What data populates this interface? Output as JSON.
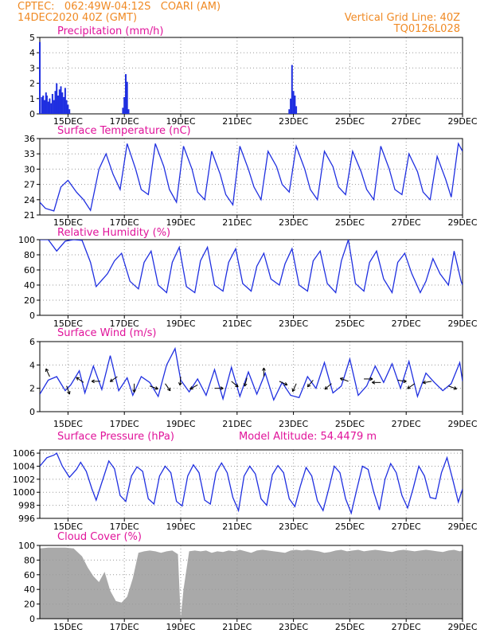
{
  "header": {
    "line1": "CPTEC:   062:49W-04:12S   COARI (AM)",
    "line2": "14DEC2020 40Z (GMT)",
    "right1": "Vertical Grid Line: 40Z",
    "right2": "TQ0126L028"
  },
  "colors": {
    "header": "#f08a24",
    "title": "#e0139a",
    "series": "#1f2fe0",
    "cloud": "#a9a9a9",
    "wind_arrow": "#000000",
    "grid": "#9a9a9a"
  },
  "x_axis": {
    "start_day": 14.0,
    "end_day": 29.0,
    "tick_days": [
      15,
      17,
      19,
      21,
      23,
      25,
      27,
      29
    ],
    "tick_labels": [
      "15DEC",
      "17DEC",
      "19DEC",
      "21DEC",
      "23DEC",
      "25DEC",
      "27DEC",
      "29DEC"
    ]
  },
  "chart_data": [
    {
      "type": "bar",
      "title": "Precipitation (mm/h)",
      "ylim": [
        0,
        5
      ],
      "yticks": [
        0,
        1,
        2,
        3,
        4,
        5
      ],
      "grid": true,
      "series": [
        {
          "x": [
            14.0,
            14.07,
            14.12,
            14.17,
            14.22,
            14.25,
            14.3,
            14.35,
            14.4,
            14.45,
            14.5,
            14.55,
            14.6,
            14.65,
            14.7,
            14.75,
            14.8,
            14.85,
            14.9,
            14.95,
            15.0,
            15.05,
            16.95,
            17.0,
            17.05,
            17.1,
            17.15,
            22.85,
            22.9,
            22.95,
            23.0,
            23.05,
            23.1
          ],
          "values": [
            4.7,
            1.1,
            1.2,
            0.9,
            1.4,
            1.2,
            0.8,
            1.0,
            0.7,
            1.3,
            0.9,
            1.5,
            2.0,
            1.2,
            1.6,
            1.8,
            1.4,
            1.1,
            1.7,
            0.9,
            0.6,
            0.3,
            0.4,
            1.1,
            2.6,
            2.1,
            0.3,
            0.3,
            1.0,
            3.2,
            1.5,
            1.2,
            0.5
          ]
        }
      ]
    },
    {
      "type": "line",
      "title": "Surface Temperature (nC)",
      "ylim": [
        21,
        36
      ],
      "yticks": [
        21,
        24,
        27,
        30,
        33,
        36
      ],
      "grid": true,
      "series": [
        {
          "x": [
            14.0,
            14.2,
            14.5,
            14.75,
            15.0,
            15.3,
            15.55,
            15.8,
            16.1,
            16.35,
            16.6,
            16.85,
            17.1,
            17.4,
            17.6,
            17.85,
            18.1,
            18.4,
            18.6,
            18.85,
            19.1,
            19.4,
            19.6,
            19.85,
            20.1,
            20.4,
            20.6,
            20.85,
            21.1,
            21.4,
            21.6,
            21.85,
            22.1,
            22.4,
            22.6,
            22.85,
            23.1,
            23.4,
            23.6,
            23.85,
            24.1,
            24.4,
            24.6,
            24.85,
            25.1,
            25.4,
            25.6,
            25.85,
            26.1,
            26.4,
            26.6,
            26.85,
            27.1,
            27.4,
            27.6,
            27.85,
            28.1,
            28.4,
            28.6,
            28.85,
            29.0
          ],
          "values": [
            23.5,
            22.3,
            21.8,
            26.5,
            27.8,
            25.5,
            24.0,
            21.9,
            30.0,
            33.0,
            29.0,
            26.0,
            35.0,
            30.0,
            26.0,
            25.0,
            35.0,
            30.5,
            26.0,
            23.5,
            34.5,
            30.0,
            25.5,
            24.0,
            33.5,
            29.0,
            25.0,
            23.0,
            34.5,
            30.0,
            26.5,
            24.0,
            33.5,
            30.5,
            27.0,
            25.5,
            34.5,
            30.0,
            26.0,
            24.0,
            33.5,
            30.5,
            26.5,
            25.0,
            33.5,
            29.5,
            26.0,
            24.0,
            34.5,
            30.0,
            26.0,
            25.0,
            33.0,
            29.5,
            25.5,
            24.0,
            32.5,
            28.0,
            24.5,
            35.0,
            33.5
          ]
        }
      ]
    },
    {
      "type": "line",
      "title": "Relative Humidity (%)",
      "ylim": [
        0,
        100
      ],
      "yticks": [
        0,
        20,
        40,
        60,
        80,
        100
      ],
      "grid": true,
      "series": [
        {
          "x": [
            14.0,
            14.3,
            14.6,
            14.9,
            15.2,
            15.5,
            15.8,
            16.0,
            16.4,
            16.65,
            16.9,
            17.2,
            17.5,
            17.7,
            17.95,
            18.2,
            18.5,
            18.7,
            18.95,
            19.2,
            19.5,
            19.7,
            19.95,
            20.2,
            20.5,
            20.7,
            20.95,
            21.2,
            21.5,
            21.7,
            21.95,
            22.2,
            22.5,
            22.7,
            22.95,
            23.2,
            23.5,
            23.7,
            23.95,
            24.2,
            24.5,
            24.7,
            24.95,
            25.2,
            25.5,
            25.7,
            25.95,
            26.2,
            26.5,
            26.7,
            26.95,
            27.2,
            27.5,
            27.7,
            27.95,
            28.2,
            28.5,
            28.7,
            28.95,
            29.0
          ],
          "values": [
            100,
            100,
            85,
            98,
            100,
            99,
            70,
            38,
            55,
            72,
            82,
            45,
            35,
            70,
            85,
            40,
            30,
            70,
            90,
            38,
            30,
            72,
            90,
            40,
            32,
            70,
            88,
            42,
            32,
            65,
            82,
            48,
            40,
            68,
            88,
            40,
            32,
            72,
            85,
            42,
            30,
            72,
            100,
            42,
            32,
            70,
            85,
            48,
            30,
            70,
            82,
            55,
            30,
            45,
            75,
            55,
            40,
            85,
            45,
            40
          ]
        }
      ]
    },
    {
      "type": "line",
      "title": "Surface Wind (m/s)",
      "ylim": [
        0,
        6
      ],
      "yticks": [
        0,
        2,
        4,
        6
      ],
      "grid": true,
      "series": [
        {
          "x": [
            14.0,
            14.3,
            14.6,
            14.9,
            15.1,
            15.4,
            15.6,
            15.9,
            16.2,
            16.5,
            16.8,
            17.1,
            17.3,
            17.6,
            17.9,
            18.2,
            18.5,
            18.8,
            19.0,
            19.3,
            19.6,
            19.9,
            20.2,
            20.5,
            20.8,
            21.1,
            21.4,
            21.7,
            22.0,
            22.3,
            22.6,
            22.9,
            23.2,
            23.5,
            23.8,
            24.1,
            24.4,
            24.7,
            25.0,
            25.3,
            25.6,
            25.9,
            26.2,
            26.5,
            26.8,
            27.1,
            27.4,
            27.7,
            28.0,
            28.3,
            28.6,
            28.9,
            29.0
          ],
          "values": [
            1.5,
            2.7,
            3.0,
            1.8,
            2.3,
            3.5,
            1.6,
            3.9,
            1.9,
            4.8,
            1.8,
            2.9,
            1.4,
            3.0,
            2.5,
            1.3,
            4.0,
            5.4,
            2.7,
            1.7,
            2.8,
            1.4,
            3.6,
            1.1,
            3.8,
            1.3,
            3.4,
            1.5,
            3.3,
            1.0,
            2.5,
            1.4,
            1.2,
            3.0,
            2.0,
            4.2,
            1.6,
            2.2,
            4.5,
            1.4,
            2.2,
            3.9,
            2.5,
            4.1,
            2.0,
            4.3,
            1.3,
            3.3,
            2.5,
            1.8,
            2.4,
            4.2,
            2.6
          ]
        }
      ],
      "wind_arrows": [
        {
          "x": 14.35,
          "speed": 3.0,
          "dir": -115
        },
        {
          "x": 14.95,
          "speed": 2.2,
          "dir": 70
        },
        {
          "x": 15.55,
          "speed": 2.5,
          "dir": 215
        },
        {
          "x": 16.15,
          "speed": 2.6,
          "dir": 180
        },
        {
          "x": 16.75,
          "speed": 3.0,
          "dir": 145
        },
        {
          "x": 17.35,
          "speed": 2.4,
          "dir": 90
        },
        {
          "x": 17.9,
          "speed": 2.2,
          "dir": 20
        },
        {
          "x": 18.45,
          "speed": 2.4,
          "dir": 55
        },
        {
          "x": 19.0,
          "speed": 3.0,
          "dir": 95
        },
        {
          "x": 19.6,
          "speed": 2.3,
          "dir": 150
        },
        {
          "x": 20.2,
          "speed": 2.0,
          "dir": 0
        },
        {
          "x": 20.8,
          "speed": 2.6,
          "dir": 40
        },
        {
          "x": 21.35,
          "speed": 2.9,
          "dir": 105
        },
        {
          "x": 21.95,
          "speed": 3.0,
          "dir": -90
        },
        {
          "x": 22.5,
          "speed": 2.6,
          "dir": 25
        },
        {
          "x": 23.1,
          "speed": 2.4,
          "dir": 115
        },
        {
          "x": 23.7,
          "speed": 2.7,
          "dir": 130
        },
        {
          "x": 24.35,
          "speed": 2.4,
          "dir": 140
        },
        {
          "x": 24.95,
          "speed": 2.6,
          "dir": 200
        },
        {
          "x": 25.5,
          "speed": 2.8,
          "dir": 0
        },
        {
          "x": 26.1,
          "speed": 2.5,
          "dir": 180
        },
        {
          "x": 26.7,
          "speed": 2.7,
          "dir": 10
        },
        {
          "x": 27.3,
          "speed": 2.4,
          "dir": 145
        },
        {
          "x": 27.9,
          "speed": 2.6,
          "dir": 170
        },
        {
          "x": 28.5,
          "speed": 2.2,
          "dir": 20
        }
      ]
    },
    {
      "type": "line",
      "title": "Surface Pressure (hPa)",
      "annotation": "Model Altitude: 54.4479 m",
      "ylim": [
        996,
        1006.5
      ],
      "yticks": [
        996,
        998,
        1000,
        1002,
        1004,
        1006
      ],
      "grid": true,
      "series": [
        {
          "x": [
            14.0,
            14.25,
            14.5,
            14.6,
            14.8,
            15.05,
            15.3,
            15.45,
            15.65,
            15.85,
            16.0,
            16.2,
            16.45,
            16.65,
            16.85,
            17.05,
            17.25,
            17.45,
            17.65,
            17.85,
            18.05,
            18.25,
            18.45,
            18.65,
            18.85,
            19.05,
            19.25,
            19.45,
            19.65,
            19.85,
            20.05,
            20.25,
            20.45,
            20.65,
            20.85,
            21.05,
            21.25,
            21.45,
            21.65,
            21.85,
            22.05,
            22.25,
            22.45,
            22.65,
            22.85,
            23.05,
            23.25,
            23.45,
            23.65,
            23.85,
            24.05,
            24.25,
            24.45,
            24.65,
            24.85,
            25.05,
            25.25,
            25.45,
            25.65,
            25.85,
            26.05,
            26.25,
            26.45,
            26.65,
            26.85,
            27.05,
            27.25,
            27.45,
            27.65,
            27.85,
            28.05,
            28.25,
            28.45,
            28.65,
            28.85,
            29.0
          ],
          "values": [
            1004.0,
            1005.3,
            1005.7,
            1006.0,
            1004.0,
            1002.3,
            1003.5,
            1004.6,
            1003.2,
            1000.5,
            998.8,
            1001.5,
            1004.8,
            1003.6,
            999.5,
            998.6,
            1002.5,
            1003.9,
            1003.2,
            999.0,
            998.2,
            1002.5,
            1004.0,
            1003.0,
            998.6,
            997.9,
            1002.5,
            1004.2,
            1003.0,
            998.8,
            998.2,
            1003.0,
            1004.5,
            1003.0,
            999.2,
            997.2,
            1002.5,
            1004.0,
            1002.8,
            999.0,
            998.0,
            1002.7,
            1004.1,
            1003.0,
            999.0,
            997.8,
            1001.0,
            1003.8,
            1002.5,
            998.7,
            997.2,
            1000.5,
            1004.0,
            1003.0,
            999.0,
            996.8,
            1000.5,
            1004.0,
            1003.5,
            1000.0,
            997.3,
            1002.0,
            1004.4,
            1003.0,
            999.5,
            997.6,
            1000.6,
            1004.0,
            1002.5,
            999.2,
            999.0,
            1003.0,
            1005.3,
            1002.0,
            998.5,
            1000.5
          ]
        }
      ]
    },
    {
      "type": "area",
      "title": "Cloud Cover (%)",
      "ylim": [
        0,
        100
      ],
      "yticks": [
        0,
        20,
        40,
        60,
        80,
        100
      ],
      "grid": true,
      "series": [
        {
          "x": [
            14.0,
            14.3,
            14.6,
            14.9,
            15.2,
            15.5,
            15.7,
            15.9,
            16.1,
            16.3,
            16.5,
            16.7,
            16.9,
            17.1,
            17.3,
            17.5,
            17.7,
            17.9,
            18.1,
            18.3,
            18.5,
            18.7,
            18.9,
            19.0,
            19.1,
            19.3,
            19.5,
            19.7,
            19.9,
            20.1,
            20.3,
            20.5,
            20.7,
            20.9,
            21.1,
            21.3,
            21.5,
            21.7,
            21.9,
            22.1,
            22.3,
            22.5,
            22.7,
            22.9,
            23.1,
            23.3,
            23.5,
            23.7,
            23.9,
            24.1,
            24.3,
            24.5,
            24.7,
            24.9,
            25.1,
            25.3,
            25.5,
            25.7,
            25.9,
            26.1,
            26.3,
            26.5,
            26.7,
            26.9,
            27.1,
            27.3,
            27.5,
            27.7,
            27.9,
            28.1,
            28.3,
            28.5,
            28.7,
            28.9,
            29.0
          ],
          "values": [
            96,
            97,
            97,
            97,
            96,
            85,
            70,
            58,
            50,
            64,
            38,
            24,
            22,
            30,
            55,
            90,
            92,
            93,
            92,
            90,
            92,
            93,
            88,
            1,
            40,
            92,
            93,
            92,
            93,
            90,
            92,
            91,
            93,
            92,
            94,
            92,
            90,
            93,
            94,
            93,
            92,
            91,
            90,
            93,
            94,
            93,
            94,
            93,
            92,
            90,
            91,
            93,
            94,
            92,
            93,
            94,
            92,
            93,
            94,
            93,
            92,
            91,
            93,
            94,
            93,
            92,
            93,
            94,
            93,
            92,
            91,
            93,
            94,
            92,
            93
          ]
        }
      ]
    }
  ]
}
